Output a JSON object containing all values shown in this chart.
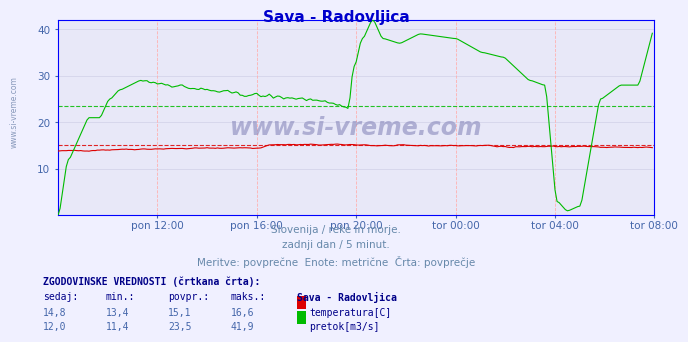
{
  "title": "Sava - Radovljica",
  "title_color": "#0000cc",
  "bg_color": "#f0f0ff",
  "plot_bg_color": "#e8e8f8",
  "grid_color": "#ffb0b0",
  "grid_h_color": "#d0d0e8",
  "watermark": "www.si-vreme.com",
  "watermark_color": "#8888bb",
  "subtitle_lines": [
    "Slovenija / reke in morje.",
    "zadnji dan / 5 minut.",
    "Meritve: povprečne  Enote: metrične  Črta: povprečje"
  ],
  "subtitle_color": "#6688aa",
  "tick_color": "#4466aa",
  "ylabel_range": [
    0,
    42
  ],
  "yticks": [
    10,
    20,
    30,
    40
  ],
  "xticklabels": [
    "pon 12:00",
    "pon 16:00",
    "pon 20:00",
    "tor 00:00",
    "tor 04:00",
    "tor 08:00"
  ],
  "n_points": 288,
  "temp_color": "#dd0000",
  "flow_color": "#00bb00",
  "temp_avg": 15.1,
  "flow_avg": 23.5,
  "table_header": "ZGODOVINSKE VREDNOSTI (črtkana črta):",
  "col_headers": [
    "sedaj:",
    "min.:",
    "povpr.:",
    "maks.:",
    "Sava - Radovljica"
  ],
  "row1": [
    "14,8",
    "13,4",
    "15,1",
    "16,6"
  ],
  "row2": [
    "12,0",
    "11,4",
    "23,5",
    "41,9"
  ],
  "legend1": "temperatura[C]",
  "legend2": "pretok[m3/s]",
  "sidebar_text": "www.si-vreme.com",
  "sidebar_color": "#8899bb",
  "border_color": "#0000ff",
  "table_color": "#000088",
  "value_color": "#4466aa"
}
